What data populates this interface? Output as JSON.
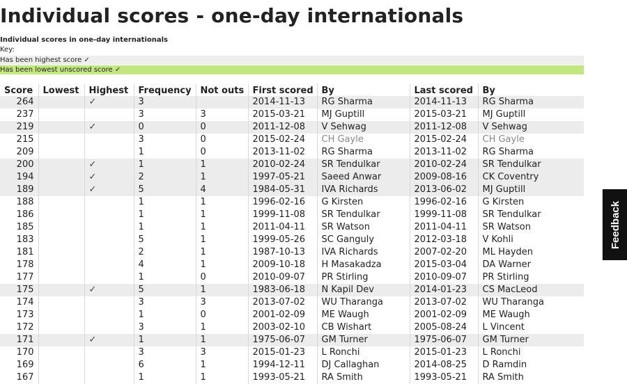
{
  "page": {
    "title": "Individual scores - one-day internationals",
    "subtitle": "Individual scores in one-day internationals",
    "key_label": "Key:",
    "key_items": [
      "Has been highest score ✓",
      "Has been lowest unscored score ✓"
    ]
  },
  "colors": {
    "highlight_row": "#ececec",
    "lowest_key": "#c4e681",
    "feedback_bg": "#111111"
  },
  "table": {
    "headers": [
      "Score",
      "Lowest",
      "Highest",
      "Frequency",
      "Not outs",
      "First scored",
      "By",
      "Last scored",
      "By"
    ],
    "rows": [
      {
        "hl": true,
        "score": "264",
        "lowest": "",
        "highest": "✓",
        "freq": "3",
        "notouts": "",
        "first": "2014-11-13",
        "by1": "RG Sharma",
        "last": "2014-11-13",
        "by2": "RG Sharma"
      },
      {
        "hl": false,
        "score": "237",
        "lowest": "",
        "highest": "",
        "freq": "3",
        "notouts": "3",
        "first": "2015-03-21",
        "by1": "MJ Guptill",
        "last": "2015-03-21",
        "by2": "MJ Guptill"
      },
      {
        "hl": true,
        "score": "219",
        "lowest": "",
        "highest": "✓",
        "freq": "0",
        "notouts": "0",
        "first": "2011-12-08",
        "by1": "V Sehwag",
        "last": "2011-12-08",
        "by2": "V Sehwag"
      },
      {
        "hl": false,
        "score": "215",
        "lowest": "",
        "highest": "",
        "freq": "3",
        "notouts": "0",
        "first": "2015-02-24",
        "by1": "CH Gayle",
        "last": "2015-02-24",
        "by2": "CH Gayle",
        "gray": true
      },
      {
        "hl": false,
        "score": "209",
        "lowest": "",
        "highest": "",
        "freq": "1",
        "notouts": "0",
        "first": "2013-11-02",
        "by1": "RG Sharma",
        "last": "2013-11-02",
        "by2": "RG Sharma"
      },
      {
        "hl": true,
        "score": "200",
        "lowest": "",
        "highest": "✓",
        "freq": "1",
        "notouts": "1",
        "first": "2010-02-24",
        "by1": "SR Tendulkar",
        "last": "2010-02-24",
        "by2": "SR Tendulkar"
      },
      {
        "hl": true,
        "score": "194",
        "lowest": "",
        "highest": "✓",
        "freq": "2",
        "notouts": "1",
        "first": "1997-05-21",
        "by1": "Saeed Anwar",
        "last": "2009-08-16",
        "by2": "CK Coventry"
      },
      {
        "hl": true,
        "score": "189",
        "lowest": "",
        "highest": "✓",
        "freq": "5",
        "notouts": "4",
        "first": "1984-05-31",
        "by1": "IVA Richards",
        "last": "2013-06-02",
        "by2": "MJ Guptill"
      },
      {
        "hl": false,
        "score": "188",
        "lowest": "",
        "highest": "",
        "freq": "1",
        "notouts": "1",
        "first": "1996-02-16",
        "by1": "G Kirsten",
        "last": "1996-02-16",
        "by2": "G Kirsten"
      },
      {
        "hl": false,
        "score": "186",
        "lowest": "",
        "highest": "",
        "freq": "1",
        "notouts": "1",
        "first": "1999-11-08",
        "by1": "SR Tendulkar",
        "last": "1999-11-08",
        "by2": "SR Tendulkar"
      },
      {
        "hl": false,
        "score": "185",
        "lowest": "",
        "highest": "",
        "freq": "1",
        "notouts": "1",
        "first": "2011-04-11",
        "by1": "SR Watson",
        "last": "2011-04-11",
        "by2": "SR Watson"
      },
      {
        "hl": false,
        "score": "183",
        "lowest": "",
        "highest": "",
        "freq": "5",
        "notouts": "1",
        "first": "1999-05-26",
        "by1": "SC Ganguly",
        "last": "2012-03-18",
        "by2": "V Kohli"
      },
      {
        "hl": false,
        "score": "181",
        "lowest": "",
        "highest": "",
        "freq": "2",
        "notouts": "1",
        "first": "1987-10-13",
        "by1": "IVA Richards",
        "last": "2007-02-20",
        "by2": "ML Hayden"
      },
      {
        "hl": false,
        "score": "178",
        "lowest": "",
        "highest": "",
        "freq": "4",
        "notouts": "1",
        "first": "2009-10-18",
        "by1": "H Masakadza",
        "last": "2015-03-04",
        "by2": "DA Warner"
      },
      {
        "hl": false,
        "score": "177",
        "lowest": "",
        "highest": "",
        "freq": "1",
        "notouts": "0",
        "first": "2010-09-07",
        "by1": "PR Stirling",
        "last": "2010-09-07",
        "by2": "PR Stirling"
      },
      {
        "hl": true,
        "score": "175",
        "lowest": "",
        "highest": "✓",
        "freq": "5",
        "notouts": "1",
        "first": "1983-06-18",
        "by1": "N Kapil Dev",
        "last": "2014-01-23",
        "by2": "CS MacLeod"
      },
      {
        "hl": false,
        "score": "174",
        "lowest": "",
        "highest": "",
        "freq": "3",
        "notouts": "3",
        "first": "2013-07-02",
        "by1": "WU Tharanga",
        "last": "2013-07-02",
        "by2": "WU Tharanga"
      },
      {
        "hl": false,
        "score": "173",
        "lowest": "",
        "highest": "",
        "freq": "1",
        "notouts": "0",
        "first": "2001-02-09",
        "by1": "ME Waugh",
        "last": "2001-02-09",
        "by2": "ME Waugh"
      },
      {
        "hl": false,
        "score": "172",
        "lowest": "",
        "highest": "",
        "freq": "3",
        "notouts": "1",
        "first": "2003-02-10",
        "by1": "CB Wishart",
        "last": "2005-08-24",
        "by2": "L Vincent"
      },
      {
        "hl": true,
        "score": "171",
        "lowest": "",
        "highest": "✓",
        "freq": "1",
        "notouts": "1",
        "first": "1975-06-07",
        "by1": "GM Turner",
        "last": "1975-06-07",
        "by2": "GM Turner"
      },
      {
        "hl": false,
        "score": "170",
        "lowest": "",
        "highest": "",
        "freq": "3",
        "notouts": "3",
        "first": "2015-01-23",
        "by1": "L Ronchi",
        "last": "2015-01-23",
        "by2": "L Ronchi"
      },
      {
        "hl": false,
        "score": "169",
        "lowest": "",
        "highest": "",
        "freq": "6",
        "notouts": "1",
        "first": "1994-12-11",
        "by1": "DJ Callaghan",
        "last": "2014-08-25",
        "by2": "D Ramdin"
      },
      {
        "hl": false,
        "score": "167",
        "lowest": "",
        "highest": "",
        "freq": "1",
        "notouts": "1",
        "first": "1993-05-21",
        "by1": "RA Smith",
        "last": "1993-05-21",
        "by2": "RA Smith"
      }
    ]
  },
  "feedback": {
    "label": "Feedback"
  }
}
